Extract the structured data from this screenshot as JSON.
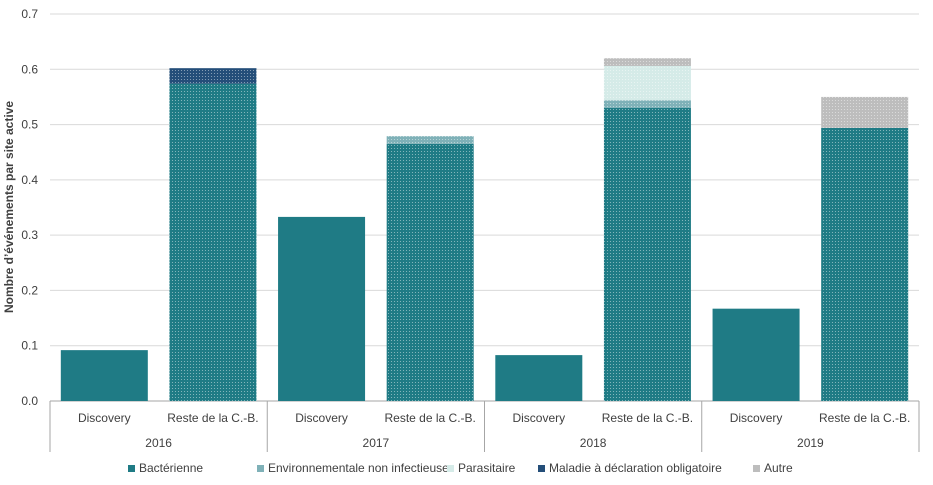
{
  "chart_data": {
    "type": "bar",
    "stacked": true,
    "title": "",
    "xlabel": "",
    "ylabel": "Nombre d’événements par site active",
    "ylim": [
      0,
      0.7
    ],
    "yticks": [
      "0.0",
      "0.1",
      "0.2",
      "0.3",
      "0.4",
      "0.5",
      "0.6",
      "0.7"
    ],
    "grid": true,
    "legend_position": "bottom",
    "groups": [
      "2016",
      "2017",
      "2018",
      "2019"
    ],
    "categories": [
      "Discovery",
      "Reste de la C.-B."
    ],
    "series": [
      {
        "name": "Bactérienne",
        "color": "#1f7b85",
        "values": [
          [
            0.092,
            0.574
          ],
          [
            0.333,
            0.465
          ],
          [
            0.083,
            0.53
          ],
          [
            0.167,
            0.494
          ]
        ]
      },
      {
        "name": "Environnementale non infectieuse",
        "color": "#7fb1b8",
        "values": [
          [
            0,
            0
          ],
          [
            0,
            0.014
          ],
          [
            0,
            0.014
          ],
          [
            0,
            0
          ]
        ]
      },
      {
        "name": "Parasitaire",
        "color": "#d5ebe8",
        "values": [
          [
            0,
            0
          ],
          [
            0,
            0
          ],
          [
            0,
            0.062
          ],
          [
            0,
            0
          ]
        ]
      },
      {
        "name": "Maladie à déclaration obligatoire",
        "color": "#244e79",
        "values": [
          [
            0,
            0.028
          ],
          [
            0,
            0
          ],
          [
            0,
            0
          ],
          [
            0,
            0
          ]
        ]
      },
      {
        "name": "Autre",
        "color": "#bdbdbd",
        "values": [
          [
            0,
            0
          ],
          [
            0,
            0
          ],
          [
            0,
            0.014
          ],
          [
            0,
            0.056
          ]
        ]
      }
    ]
  }
}
